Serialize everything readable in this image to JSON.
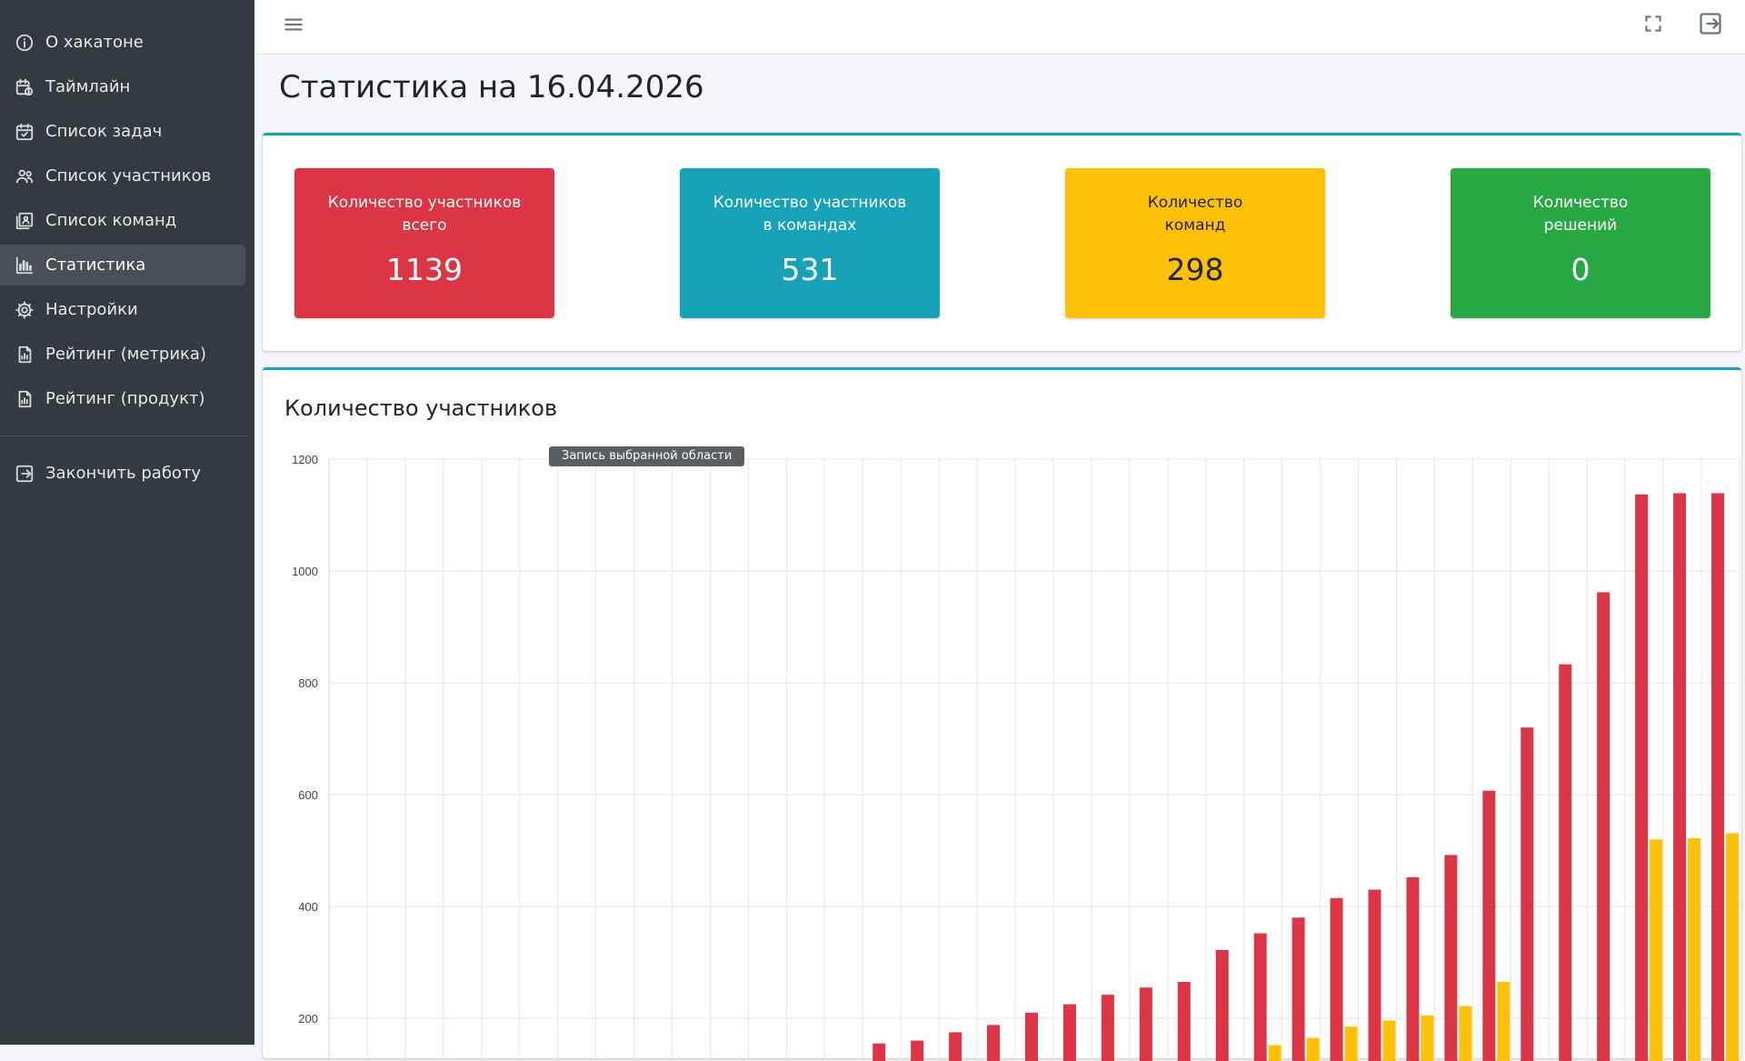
{
  "sidebar": {
    "items": [
      {
        "label": "О хакатоне",
        "icon": "info-icon"
      },
      {
        "label": "Таймлайн",
        "icon": "calendar-clock-icon"
      },
      {
        "label": "Список задач",
        "icon": "calendar-check-icon"
      },
      {
        "label": "Список участников",
        "icon": "users-icon"
      },
      {
        "label": "Список команд",
        "icon": "contacts-list-icon"
      },
      {
        "label": "Статистика",
        "icon": "bar-chart-icon",
        "active": true
      },
      {
        "label": "Настройки",
        "icon": "gear-icon"
      },
      {
        "label": "Рейтинг (метрика)",
        "icon": "report-icon"
      },
      {
        "label": "Рейтинг (продукт)",
        "icon": "report-icon"
      }
    ],
    "logout_label": "Закончить работу"
  },
  "header": {
    "menu_icon": "hamburger-icon",
    "fullscreen_icon": "fullscreen-icon",
    "logout_icon": "logout-icon"
  },
  "page": {
    "title": "Статистика на 16.04.2026"
  },
  "stats": [
    {
      "label": "Количество участников\nвсего",
      "value": "1139",
      "color": "#dc3545"
    },
    {
      "label": "Количество участников\nв командах",
      "value": "531",
      "color": "#17a2b8"
    },
    {
      "label": "Количество\nкоманд",
      "value": "298",
      "color": "#ffc107"
    },
    {
      "label": "Количество\nрешений",
      "value": "0",
      "color": "#28a745"
    }
  ],
  "chart": {
    "title": "Количество участников",
    "tooltip": "Запись выбранной области"
  },
  "chart_data": {
    "type": "bar",
    "ylim": [
      0,
      1200
    ],
    "yticks": [
      200,
      400,
      600,
      800,
      1000,
      1200
    ],
    "grid": true,
    "series": [
      {
        "color": "#dc3545",
        "values": [
          0,
          0,
          0,
          0,
          0,
          0,
          0,
          0,
          0,
          0,
          0,
          0,
          0,
          0,
          155,
          160,
          175,
          188,
          210,
          225,
          242,
          255,
          265,
          322,
          352,
          380,
          415,
          430,
          452,
          492,
          607,
          720,
          833,
          962,
          1137,
          1139,
          1139
        ]
      },
      {
        "color": "#ffc107",
        "values": [
          0,
          0,
          0,
          0,
          0,
          0,
          0,
          0,
          0,
          0,
          0,
          0,
          0,
          0,
          0,
          0,
          0,
          0,
          0,
          0,
          0,
          0,
          0,
          0,
          152,
          165,
          185,
          196,
          205,
          222,
          265,
          0,
          0,
          0,
          520,
          522,
          531
        ]
      }
    ]
  }
}
